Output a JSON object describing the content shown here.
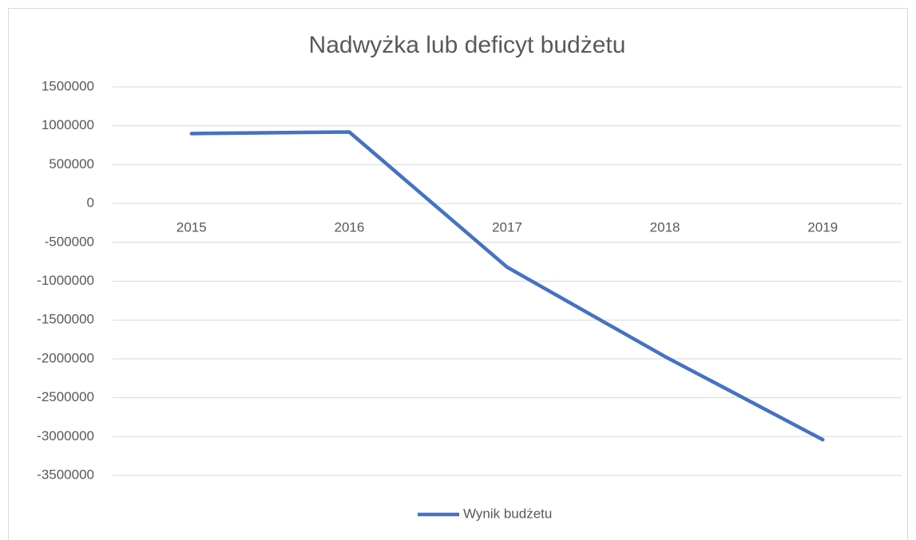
{
  "chart_data": {
    "type": "line",
    "title": "Nadwyżka lub deficyt budżetu",
    "categories": [
      "2015",
      "2016",
      "2017",
      "2018",
      "2019"
    ],
    "series": [
      {
        "name": "Wynik budżetu",
        "color": "#4472c4",
        "values": [
          900000,
          920000,
          -820000,
          -1970000,
          -3040000
        ]
      }
    ],
    "ylim": [
      -3500000,
      1500000
    ],
    "yticks": [
      -3500000,
      -3000000,
      -2500000,
      -2000000,
      -1500000,
      -1000000,
      -500000,
      0,
      500000,
      1000000,
      1500000
    ],
    "grid": true,
    "legend": "bottom"
  }
}
